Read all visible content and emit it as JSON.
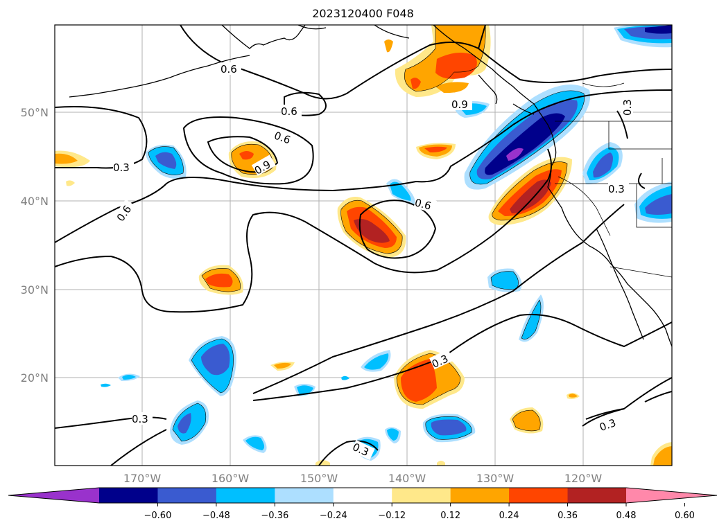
{
  "title": "2023120400 F048",
  "map": {
    "lat_labels": [
      "50°N",
      "40°N",
      "30°N",
      "20°N"
    ],
    "lon_labels": [
      "170°W",
      "160°W",
      "150°W",
      "140°W",
      "130°W",
      "120°W"
    ],
    "contour_labels": [
      "0.6",
      "0.6",
      "0.6",
      "0.6",
      "0.9",
      "0.9",
      "0.3",
      "0.6",
      "0.3",
      "0.3",
      "0.3",
      "0.3",
      "0.3",
      "0.3"
    ]
  },
  "colorbar": {
    "ticks": [
      "−0.60",
      "−0.48",
      "−0.36",
      "−0.24",
      "−0.12",
      "0.12",
      "0.24",
      "0.36",
      "0.48",
      "0.60"
    ],
    "colors": [
      "#9932CC",
      "#00008B",
      "#3A5BD0",
      "#00BFFF",
      "#ADDFFF",
      "#FFFFFF",
      "#FFE88A",
      "#FFA500",
      "#FF4500",
      "#B22222",
      "#FF88AA"
    ]
  },
  "fill_colors": {
    "neg1": "#ADDFFF",
    "neg2": "#00BFFF",
    "neg3": "#3A5BD0",
    "neg4": "#00008B",
    "neg5": "#9932CC",
    "pos1": "#FFE88A",
    "pos2": "#FFA500",
    "pos3": "#FF4500",
    "pos4": "#B22222"
  }
}
